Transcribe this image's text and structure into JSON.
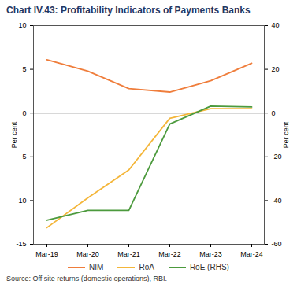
{
  "chart_data": {
    "type": "line",
    "title": "Chart IV.43: Profitability Indicators of Payments Banks",
    "categories": [
      "Mar-19",
      "Mar-20",
      "Mar-21",
      "Mar-22",
      "Mar-23",
      "Mar-24"
    ],
    "series": [
      {
        "name": "NIM",
        "color": "#ef7d3b",
        "values": [
          6.1,
          4.8,
          2.8,
          2.4,
          3.7,
          5.7
        ]
      },
      {
        "name": "RoA",
        "color": "#f4b63a",
        "values": [
          -13.1,
          -9.7,
          -6.5,
          -0.6,
          0.5,
          0.5
        ]
      },
      {
        "name": "RoE (RHS)",
        "color": "#4c9a3d",
        "axis": "y2",
        "values": [
          -49.0,
          -44.5,
          -44.5,
          -5.0,
          3.2,
          2.8
        ]
      }
    ],
    "ylabel": "Per cent",
    "y2label": "Per cent",
    "ylim": [
      -15,
      10
    ],
    "yticks": [
      -15,
      -10,
      -5,
      0,
      5,
      10
    ],
    "y2lim": [
      -60,
      40
    ],
    "y2ticks": [
      -60,
      -40,
      -20,
      0,
      20,
      40
    ],
    "grid": false,
    "legend": "bottom",
    "source": "Source: Off site returns (domestic operations), RBI."
  }
}
